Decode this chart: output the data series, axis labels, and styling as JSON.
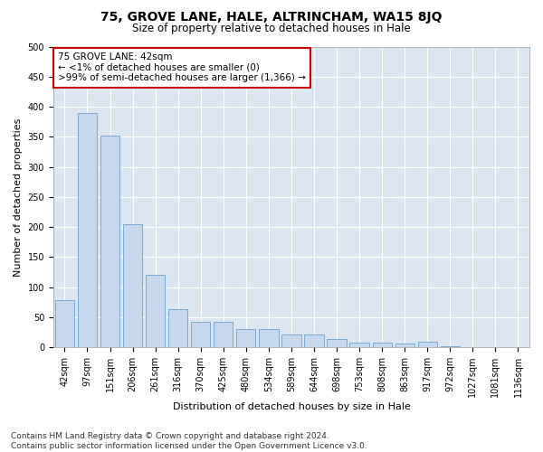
{
  "title1": "75, GROVE LANE, HALE, ALTRINCHAM, WA15 8JQ",
  "title2": "Size of property relative to detached houses in Hale",
  "xlabel": "Distribution of detached houses by size in Hale",
  "ylabel": "Number of detached properties",
  "categories": [
    "42sqm",
    "97sqm",
    "151sqm",
    "206sqm",
    "261sqm",
    "316sqm",
    "370sqm",
    "425sqm",
    "480sqm",
    "534sqm",
    "589sqm",
    "644sqm",
    "698sqm",
    "753sqm",
    "808sqm",
    "863sqm",
    "917sqm",
    "972sqm",
    "1027sqm",
    "1081sqm",
    "1136sqm"
  ],
  "values": [
    78,
    390,
    352,
    204,
    121,
    63,
    43,
    43,
    31,
    31,
    22,
    22,
    14,
    8,
    8,
    7,
    10,
    2,
    1,
    1,
    1
  ],
  "bar_color": "#c5d8ee",
  "bar_edge_color": "#6aa0cc",
  "annotation_text": "75 GROVE LANE: 42sqm\n← <1% of detached houses are smaller (0)\n>99% of semi-detached houses are larger (1,366) →",
  "annotation_box_color": "#ffffff",
  "annotation_box_edge": "#cc0000",
  "ylim": [
    0,
    500
  ],
  "yticks": [
    0,
    50,
    100,
    150,
    200,
    250,
    300,
    350,
    400,
    450,
    500
  ],
  "footer": "Contains HM Land Registry data © Crown copyright and database right 2024.\nContains public sector information licensed under the Open Government Licence v3.0.",
  "plot_bg_color": "#dce6f1",
  "title1_fontsize": 10,
  "title2_fontsize": 8.5,
  "axis_label_fontsize": 8,
  "tick_fontsize": 7,
  "annotation_fontsize": 7.5,
  "footer_fontsize": 6.5
}
